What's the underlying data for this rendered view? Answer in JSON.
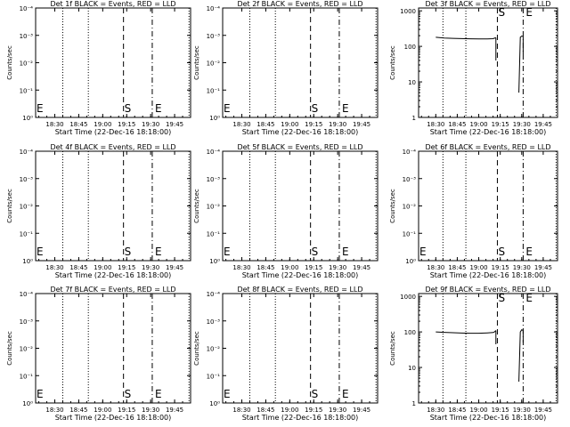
{
  "figure": {
    "xlabel": "Start Time (22-Dec-16 18:18:00)",
    "ylabel": "Counts/sec",
    "x_ticks": [
      "18:30",
      "18:45",
      "19:00",
      "19:15",
      "19:30",
      "19:45"
    ],
    "marker_S": "S",
    "marker_E": "E",
    "marker_E_left": "E"
  },
  "chart_data": [
    {
      "type": "line",
      "title": "Det 1f BLACK = Events, RED = LLD",
      "yscale": "log",
      "y_ticks": [
        "10⁰",
        "10⁻¹",
        "10⁻²",
        "10⁻³",
        "10⁻⁴"
      ],
      "xlim": [
        "18:18",
        "19:55"
      ],
      "ylim": [
        1,
        10000
      ],
      "vlines": {
        "dotted": [
          "18:35",
          "18:51",
          "19:54"
        ],
        "dashed": "19:13",
        "dashdot": "19:31"
      },
      "series": []
    },
    {
      "type": "line",
      "title": "Det 2f BLACK = Events, RED = LLD",
      "yscale": "log",
      "y_ticks": [
        "10⁰",
        "10⁻¹",
        "10⁻²",
        "10⁻³",
        "10⁻⁴"
      ],
      "xlim": [
        "18:18",
        "19:55"
      ],
      "ylim": [
        1,
        10000
      ],
      "vlines": {
        "dotted": [
          "18:35",
          "18:51",
          "19:54"
        ],
        "dashed": "19:13",
        "dashdot": "19:31"
      },
      "series": []
    },
    {
      "type": "line",
      "title": "Det 3f BLACK = Events, RED = LLD",
      "yscale": "log",
      "y_ticks": [
        "1",
        "10",
        "100",
        "1000"
      ],
      "xlim": [
        "18:18",
        "19:55"
      ],
      "ylim": [
        1,
        1200
      ],
      "vlines": {
        "dotted": [
          "18:35",
          "18:51",
          "19:54"
        ],
        "dashed": "19:13",
        "dashdot": "19:31"
      },
      "series": [
        {
          "x": [
            "18:30",
            "18:36",
            "18:42",
            "18:48",
            "18:54",
            "19:00",
            "19:06",
            "19:10",
            "19:11",
            "19:12"
          ],
          "y": [
            180,
            172,
            168,
            165,
            163,
            162,
            162,
            164,
            170,
            175
          ]
        },
        {
          "x": [
            "19:12",
            "19:12"
          ],
          "y": [
            175,
            40
          ]
        },
        {
          "x": [
            "19:28",
            "19:29",
            "19:30",
            "19:31",
            "19:31"
          ],
          "y": [
            5,
            180,
            195,
            190,
            60
          ]
        }
      ]
    },
    {
      "type": "line",
      "title": "Det 4f BLACK = Events, RED = LLD",
      "yscale": "log",
      "y_ticks": [
        "10⁰",
        "10⁻¹",
        "10⁻²",
        "10⁻³",
        "10⁻⁴"
      ],
      "xlim": [
        "18:18",
        "19:55"
      ],
      "ylim": [
        1,
        10000
      ],
      "vlines": {
        "dotted": [
          "18:35",
          "18:51",
          "19:54"
        ],
        "dashed": "19:13",
        "dashdot": "19:31"
      },
      "series": []
    },
    {
      "type": "line",
      "title": "Det 5f BLACK = Events, RED = LLD",
      "yscale": "log",
      "y_ticks": [
        "10⁰",
        "10⁻¹",
        "10⁻²",
        "10⁻³",
        "10⁻⁴"
      ],
      "xlim": [
        "18:18",
        "19:55"
      ],
      "ylim": [
        1,
        10000
      ],
      "vlines": {
        "dotted": [
          "18:35",
          "18:51",
          "19:54"
        ],
        "dashed": "19:13",
        "dashdot": "19:31"
      },
      "series": []
    },
    {
      "type": "line",
      "title": "Det 6f BLACK = Events, RED = LLD",
      "yscale": "log",
      "y_ticks": [
        "10⁰",
        "10⁻¹",
        "10⁻²",
        "10⁻³",
        "10⁻⁴"
      ],
      "xlim": [
        "18:18",
        "19:55"
      ],
      "ylim": [
        1,
        10000
      ],
      "vlines": {
        "dotted": [
          "18:35",
          "18:51",
          "19:54"
        ],
        "dashed": "19:13",
        "dashdot": "19:31"
      },
      "series": []
    },
    {
      "type": "line",
      "title": "Det 7f BLACK = Events, RED = LLD",
      "yscale": "log",
      "y_ticks": [
        "10⁰",
        "10⁻¹",
        "10⁻²",
        "10⁻³",
        "10⁻⁴"
      ],
      "xlim": [
        "18:18",
        "19:55"
      ],
      "ylim": [
        1,
        10000
      ],
      "vlines": {
        "dotted": [
          "18:35",
          "18:51",
          "19:54"
        ],
        "dashed": "19:13",
        "dashdot": "19:31"
      },
      "series": []
    },
    {
      "type": "line",
      "title": "Det 8f BLACK = Events, RED = LLD",
      "yscale": "log",
      "y_ticks": [
        "10⁰",
        "10⁻¹",
        "10⁻²",
        "10⁻³",
        "10⁻⁴"
      ],
      "xlim": [
        "18:18",
        "19:55"
      ],
      "ylim": [
        1,
        10000
      ],
      "vlines": {
        "dotted": [
          "18:35",
          "18:51",
          "19:54"
        ],
        "dashed": "19:13",
        "dashdot": "19:31"
      },
      "series": []
    },
    {
      "type": "line",
      "title": "Det 9f BLACK = Events, RED = LLD",
      "yscale": "log",
      "y_ticks": [
        "1",
        "10",
        "100",
        "1000"
      ],
      "xlim": [
        "18:18",
        "19:55"
      ],
      "ylim": [
        1,
        1200
      ],
      "vlines": {
        "dotted": [
          "18:35",
          "18:51",
          "19:54"
        ],
        "dashed": "19:13",
        "dashdot": "19:31"
      },
      "series": [
        {
          "x": [
            "18:30",
            "18:36",
            "18:42",
            "18:48",
            "18:54",
            "19:00",
            "19:06",
            "19:10",
            "19:11",
            "19:12"
          ],
          "y": [
            100,
            97,
            95,
            93,
            92,
            92,
            94,
            96,
            100,
            110
          ]
        },
        {
          "x": [
            "19:12",
            "19:12"
          ],
          "y": [
            110,
            45
          ]
        },
        {
          "x": [
            "19:28",
            "19:29",
            "19:30",
            "19:31",
            "19:31"
          ],
          "y": [
            4,
            100,
            115,
            110,
            50
          ]
        }
      ]
    }
  ]
}
